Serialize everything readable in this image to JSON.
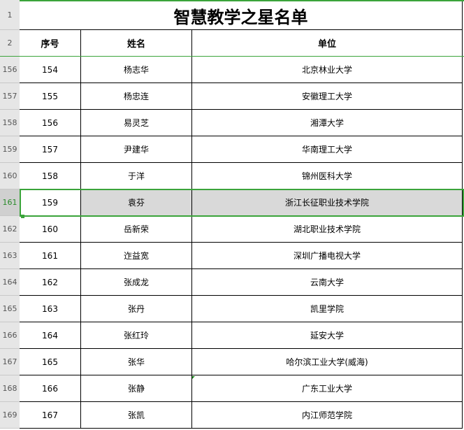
{
  "title": "智慧教学之星名单",
  "header_row_numbers": [
    "1",
    "2"
  ],
  "columns": [
    "序号",
    "姓名",
    "单位"
  ],
  "rows": [
    {
      "row": "156",
      "no": "154",
      "name": "杨志华",
      "unit": "北京林业大学"
    },
    {
      "row": "157",
      "no": "155",
      "name": "杨忠连",
      "unit": "安徽理工大学"
    },
    {
      "row": "158",
      "no": "156",
      "name": "易灵芝",
      "unit": "湘潭大学"
    },
    {
      "row": "159",
      "no": "157",
      "name": "尹建华",
      "unit": "华南理工大学"
    },
    {
      "row": "160",
      "no": "158",
      "name": "于洋",
      "unit": "锦州医科大学"
    },
    {
      "row": "161",
      "no": "159",
      "name": "袁芬",
      "unit": "浙江长征职业技术学院",
      "selected": true
    },
    {
      "row": "162",
      "no": "160",
      "name": "岳新荣",
      "unit": "湖北职业技术学院"
    },
    {
      "row": "163",
      "no": "161",
      "name": "迮益宽",
      "unit": "深圳广播电视大学"
    },
    {
      "row": "164",
      "no": "162",
      "name": "张成龙",
      "unit": "云南大学"
    },
    {
      "row": "165",
      "no": "163",
      "name": "张丹",
      "unit": "凯里学院"
    },
    {
      "row": "166",
      "no": "164",
      "name": "张红玲",
      "unit": "延安大学"
    },
    {
      "row": "167",
      "no": "165",
      "name": "张华",
      "unit": "哈尔滨工业大学(威海)"
    },
    {
      "row": "168",
      "no": "166",
      "name": "张静",
      "unit": "广东工业大学"
    },
    {
      "row": "169",
      "no": "167",
      "name": "张凯",
      "unit": "内江师范学院"
    }
  ],
  "colors": {
    "selection": "#3aa43a",
    "selected_fill": "#d9d9d9",
    "row_header_bg": "#e6e6e6"
  }
}
